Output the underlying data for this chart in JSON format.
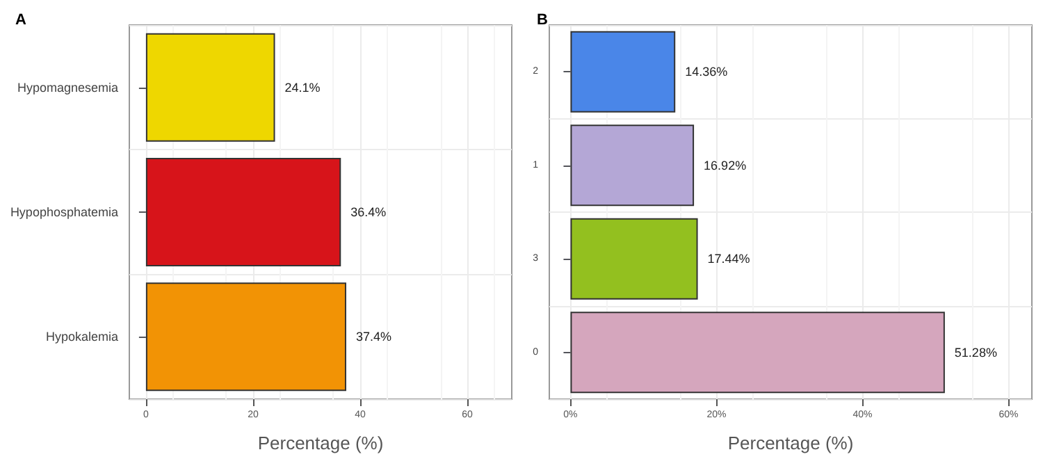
{
  "chart_data": [
    {
      "type": "bar",
      "title": "A",
      "orientation": "horizontal",
      "categories": [
        "Hypomagnesemia",
        "Hypophosphatemia",
        "Hypokalemia"
      ],
      "values": [
        24.1,
        36.4,
        37.4
      ],
      "colors": [
        "#eed700",
        "#d7141a",
        "#f29305"
      ],
      "value_labels": [
        "24.1%",
        "36.4%",
        "37.4%"
      ],
      "xlabel": "Percentage (%)",
      "xlim": [
        -3.1,
        68.3
      ],
      "xticks": [
        0,
        20,
        40,
        60
      ],
      "grid": true
    },
    {
      "type": "bar",
      "title": "B",
      "orientation": "horizontal",
      "categories": [
        "2",
        "1",
        "3",
        "0"
      ],
      "values": [
        14.36,
        16.92,
        17.44,
        51.28
      ],
      "colors": [
        "#4a86e8",
        "#b4a7d6",
        "#93c01f",
        "#d5a6bd"
      ],
      "value_labels": [
        "14.36%",
        "16.92%",
        "17.44%",
        "51.28%"
      ],
      "xlabel": "Percentage (%)",
      "xlim": [
        -2.9,
        63.2
      ],
      "xticks": [
        {
          "value": 0,
          "label": "0%"
        },
        {
          "value": 20,
          "label": "20%"
        },
        {
          "value": 40,
          "label": "40%"
        },
        {
          "value": 60,
          "label": "60%"
        }
      ],
      "grid": true
    }
  ]
}
